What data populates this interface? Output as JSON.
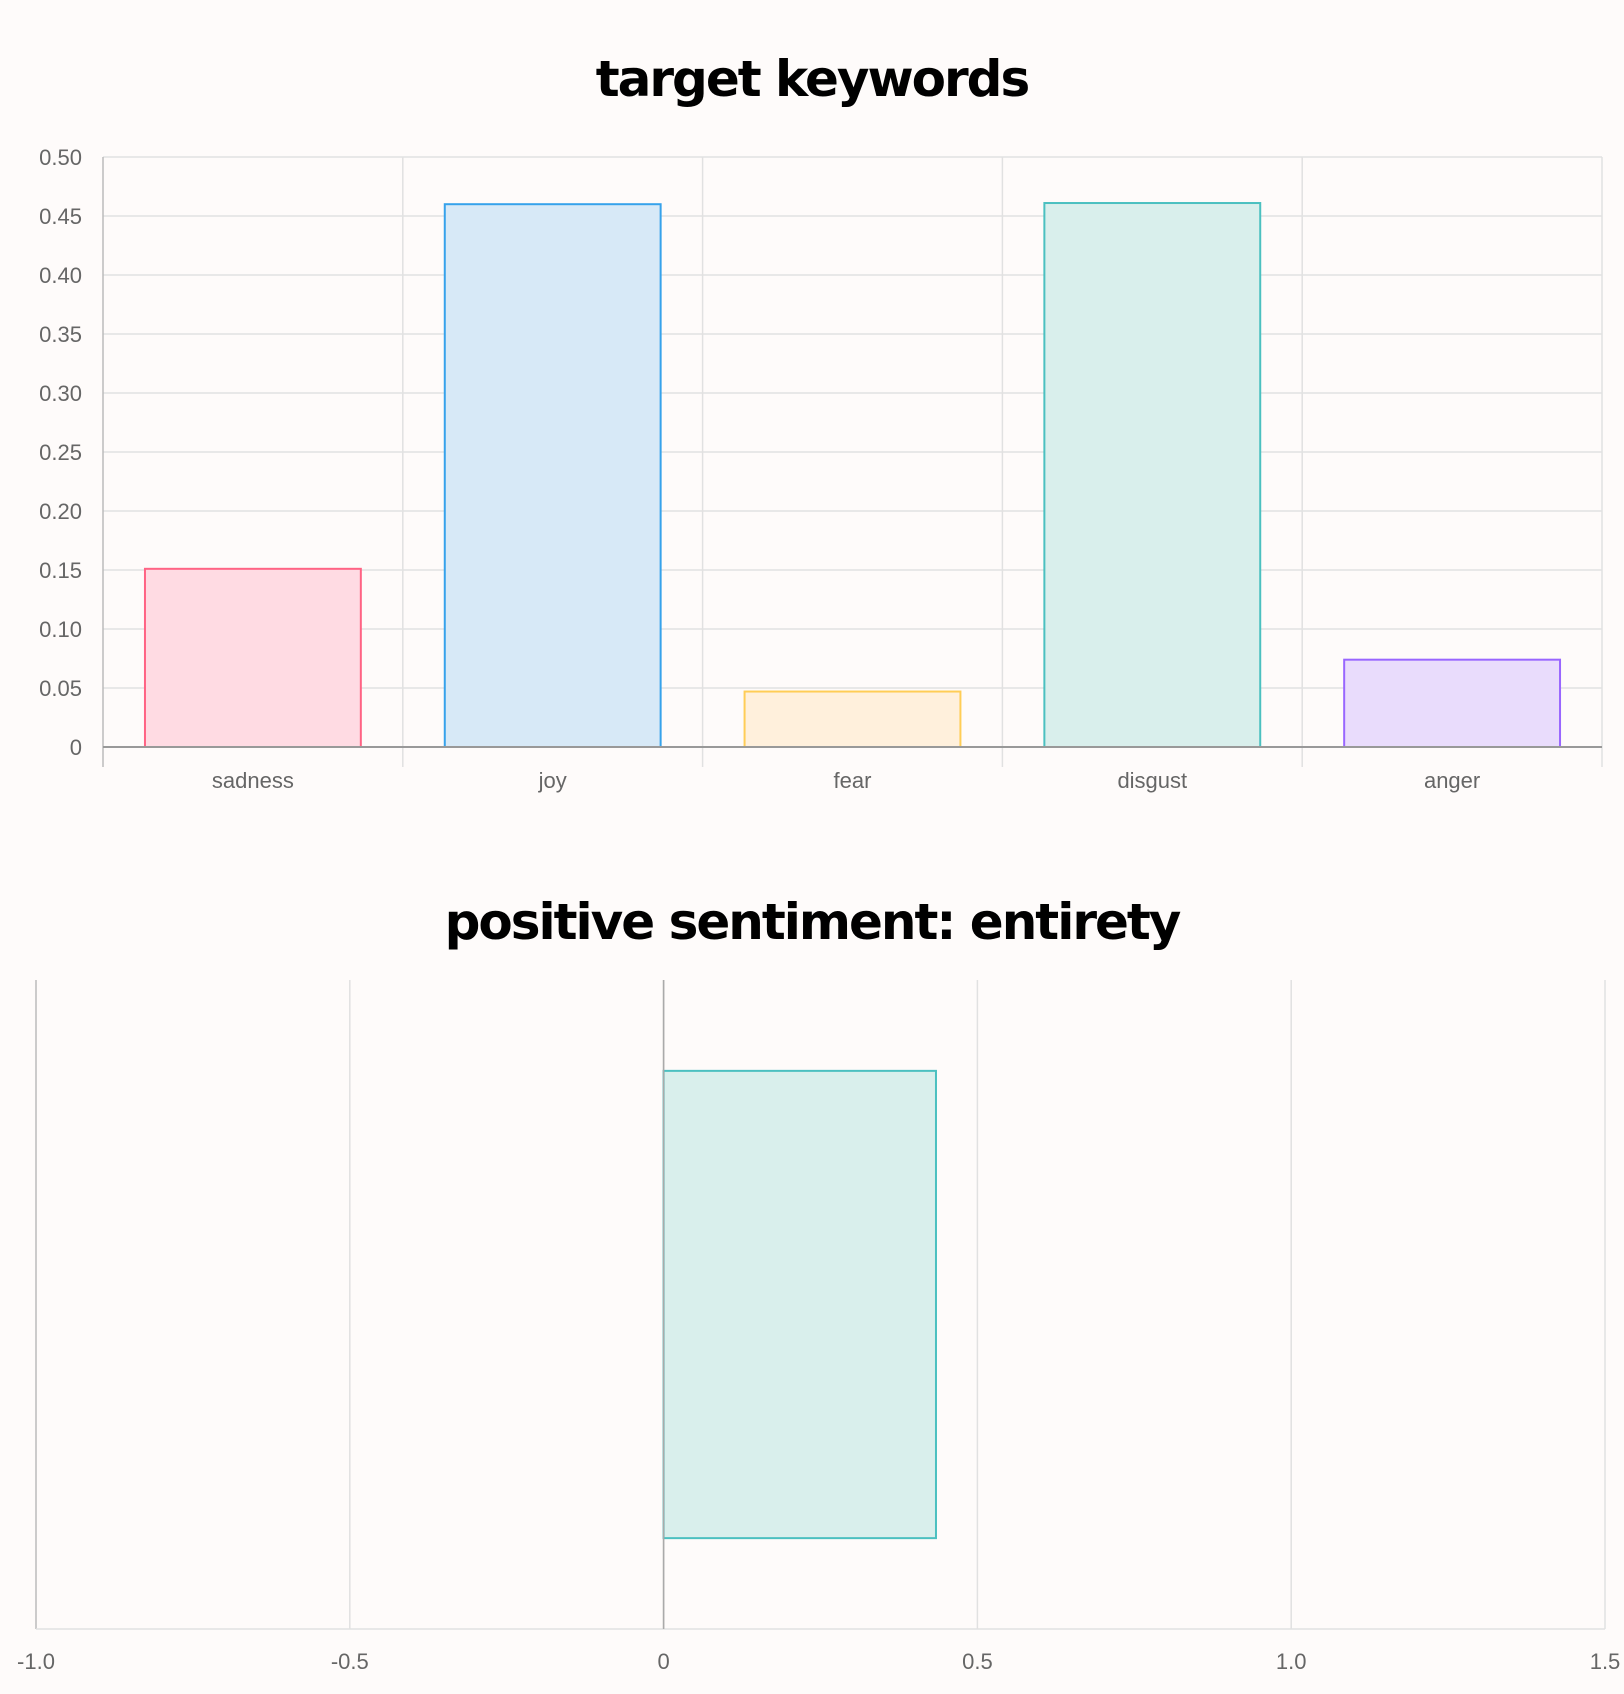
{
  "chart_data": [
    {
      "type": "bar",
      "title": "target keywords",
      "categories": [
        "sadness",
        "joy",
        "fear",
        "disgust",
        "anger"
      ],
      "values": [
        0.151,
        0.46,
        0.047,
        0.461,
        0.074
      ],
      "colors": {
        "fill": [
          "#ffdbe3",
          "#d7e9f7",
          "#fff0dc",
          "#d9efec",
          "#e9dcfc"
        ],
        "stroke": [
          "#ff6384",
          "#36a2eb",
          "#ffcd56",
          "#4bc0c0",
          "#9966ff"
        ]
      },
      "ylim": [
        0,
        0.5
      ],
      "yticks": [
        "0",
        "0.05",
        "0.10",
        "0.15",
        "0.20",
        "0.25",
        "0.30",
        "0.35",
        "0.40",
        "0.45",
        "0.50"
      ],
      "grid": true
    },
    {
      "type": "bar",
      "orientation": "horizontal",
      "title": "positive sentiment: entirety",
      "values": [
        0.434
      ],
      "colors": {
        "fill": [
          "#d9efec"
        ],
        "stroke": [
          "#4bc0c0"
        ]
      },
      "xlim": [
        -1.0,
        1.5
      ],
      "xticks": [
        "-1.0",
        "-0.5",
        "0",
        "0.5",
        "1.0",
        "1.5"
      ],
      "grid": true
    }
  ]
}
